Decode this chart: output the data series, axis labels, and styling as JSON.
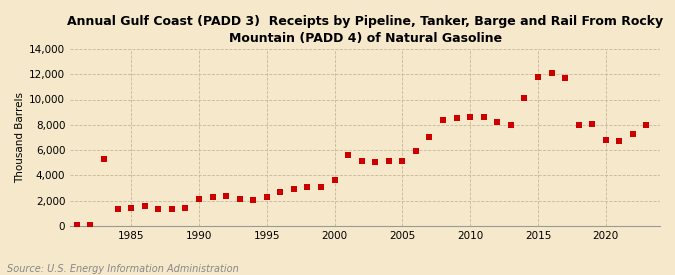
{
  "title": "Annual Gulf Coast (PADD 3)  Receipts by Pipeline, Tanker, Barge and Rail From Rocky\nMountain (PADD 4) of Natural Gasoline",
  "ylabel": "Thousand Barrels",
  "source": "Source: U.S. Energy Information Administration",
  "background_color": "#f5e8cb",
  "plot_background_color": "#f5e8cb",
  "dot_color": "#cc0000",
  "years": [
    1981,
    1982,
    1983,
    1984,
    1985,
    1986,
    1987,
    1988,
    1989,
    1990,
    1991,
    1992,
    1993,
    1994,
    1995,
    1996,
    1997,
    1998,
    1999,
    2000,
    2001,
    2002,
    2003,
    2004,
    2005,
    2006,
    2007,
    2008,
    2009,
    2010,
    2011,
    2012,
    2013,
    2014,
    2015,
    2016,
    2017,
    2018,
    2019,
    2020,
    2021,
    2022,
    2023
  ],
  "values": [
    50,
    100,
    5300,
    1350,
    1450,
    1550,
    1350,
    1300,
    1400,
    2100,
    2300,
    2350,
    2100,
    2050,
    2300,
    2700,
    2950,
    3050,
    3100,
    3650,
    5600,
    5150,
    5050,
    5100,
    5150,
    5900,
    7000,
    8350,
    8500,
    8650,
    8600,
    8200,
    8000,
    10100,
    11800,
    12100,
    11700,
    8000,
    8100,
    6800,
    6700,
    7300,
    7950
  ],
  "ylim": [
    0,
    14000
  ],
  "yticks": [
    0,
    2000,
    4000,
    6000,
    8000,
    10000,
    12000,
    14000
  ],
  "xlim": [
    1980.5,
    2024
  ],
  "xticks": [
    1985,
    1990,
    1995,
    2000,
    2005,
    2010,
    2015,
    2020
  ]
}
